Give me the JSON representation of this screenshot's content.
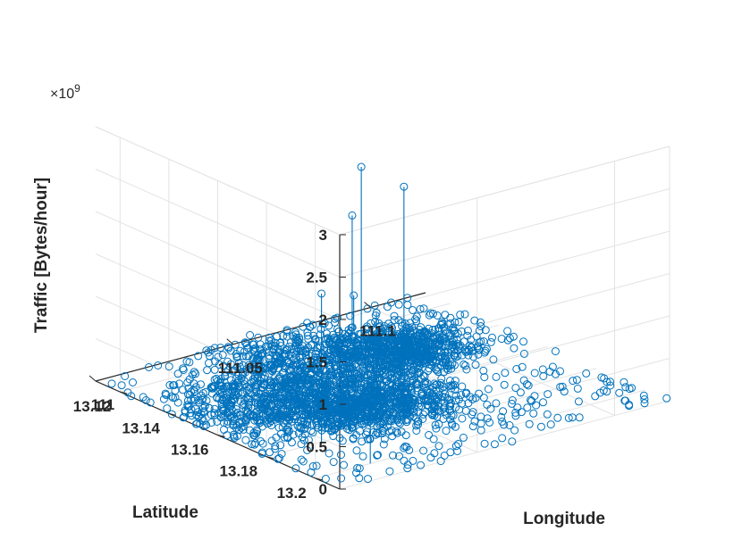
{
  "chart_data": {
    "type": "scatter3",
    "title": "",
    "xlabel": "Longitude",
    "ylabel": "Latitude",
    "zlabel": "Traffic [Bytes/hour]",
    "z_multiplier_label": "×10",
    "z_multiplier_exp": "9",
    "xlim": [
      111.0,
      111.12
    ],
    "ylim": [
      13.11,
      13.21
    ],
    "zlim": [
      0,
      3
    ],
    "x_ticks": [
      {
        "value": 111.0,
        "label": "111"
      },
      {
        "value": 111.05,
        "label": "111.05"
      },
      {
        "value": 111.1,
        "label": "111.1"
      }
    ],
    "y_ticks": [
      {
        "value": 13.12,
        "label": "13.12"
      },
      {
        "value": 13.14,
        "label": "13.14"
      },
      {
        "value": 13.16,
        "label": "13.16"
      },
      {
        "value": 13.18,
        "label": "13.18"
      },
      {
        "value": 13.2,
        "label": "13.2"
      }
    ],
    "z_ticks": [
      {
        "value": 0,
        "label": "0"
      },
      {
        "value": 0.5,
        "label": "0.5"
      },
      {
        "value": 1,
        "label": "1"
      },
      {
        "value": 1.5,
        "label": "1.5"
      },
      {
        "value": 2,
        "label": "2"
      },
      {
        "value": 2.5,
        "label": "2.5"
      },
      {
        "value": 3,
        "label": "3"
      }
    ],
    "grid": true,
    "marker": "circle",
    "color": "#0072BD",
    "stems": [
      {
        "x": 111.05,
        "y": 13.18,
        "z": 2.75
      },
      {
        "x": 111.07,
        "y": 13.14,
        "z": 2.3
      },
      {
        "x": 111.08,
        "y": 13.125,
        "z": 1.45
      },
      {
        "x": 111.02,
        "y": 13.18,
        "z": 1.75
      },
      {
        "x": 111.04,
        "y": 13.18,
        "z": 1.35
      },
      {
        "x": 111.02,
        "y": 13.2,
        "z": 0.9
      },
      {
        "x": 111.085,
        "y": 13.12,
        "z": 0.4
      }
    ],
    "bulk_points_note": "Several thousand additional points with traffic near 0 spread over the whole longitude/latitude range."
  }
}
